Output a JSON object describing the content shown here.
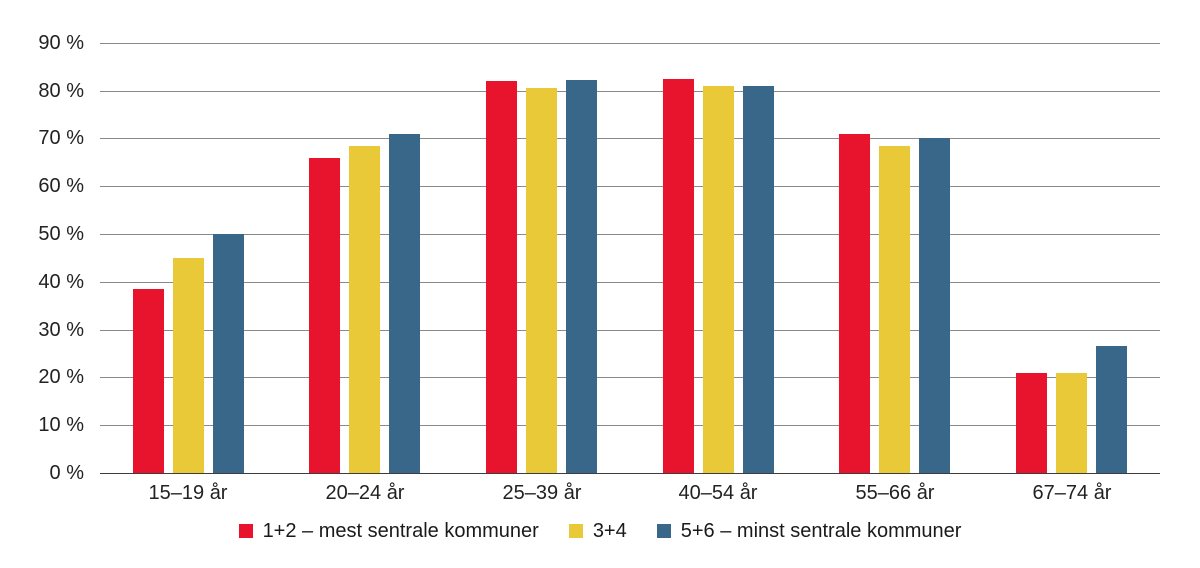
{
  "chart_data": {
    "type": "bar",
    "categories": [
      "15–19 år",
      "20–24 år",
      "25–39 år",
      "40–54 år",
      "55–66 år",
      "67–74 år"
    ],
    "series": [
      {
        "name": "1+2 – mest sentrale kommuner",
        "color": "#e8142d",
        "values": [
          38.5,
          66,
          82,
          82.5,
          71,
          21
        ]
      },
      {
        "name": "3+4",
        "color": "#e9c938",
        "values": [
          45,
          68.5,
          80.5,
          81,
          68.5,
          21
        ]
      },
      {
        "name": "5+6 – minst sentrale kommuner",
        "color": "#38678a",
        "values": [
          50,
          71,
          82.2,
          81,
          70,
          26.5
        ]
      }
    ],
    "y_axis": {
      "min": 0,
      "max": 90,
      "tick_step": 10,
      "tick_labels": [
        "0 %",
        "10 %",
        "20 %",
        "30 %",
        "40 %",
        "50 %",
        "60 %",
        "70 %",
        "80 %",
        "90 %"
      ]
    },
    "grid": true,
    "legend_position": "bottom",
    "title": "",
    "xlabel": "",
    "ylabel": ""
  },
  "colors": {
    "grid_line": "#8a8a8a",
    "axis_line": "#3d3d3d",
    "text": "#222222",
    "background": "#ffffff"
  }
}
